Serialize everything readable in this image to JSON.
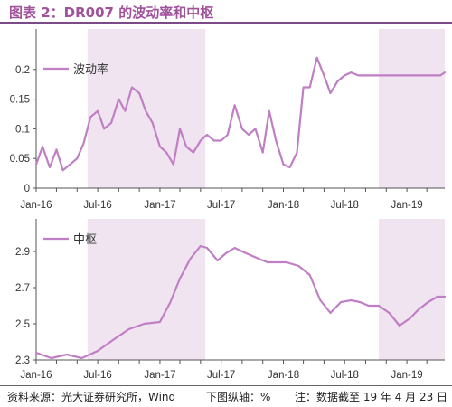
{
  "header": {
    "title": "图表 2：DR007 的波动率和中枢"
  },
  "footer": {
    "source": "资料来源：光大证券研究所，Wind",
    "axis_note": "下图纵轴：%",
    "note": "注：数据截至 19 年 4 月 23 日"
  },
  "colors": {
    "line": "#c07fc5",
    "shade": "#efe4f0",
    "title": "#a0529b"
  },
  "chart_data": [
    {
      "type": "line",
      "title": "",
      "legend": "top-left",
      "grid": false,
      "x_tick_labels": [
        "Jan-16",
        "Jul-16",
        "Jan-17",
        "Jul-17",
        "Jan-18",
        "Jul-18",
        "Jan-19"
      ],
      "xlim": [
        "2016-01-01",
        "2019-04-23"
      ],
      "ylim": [
        0,
        0.25
      ],
      "y_ticks": [
        0,
        0.05,
        0.1,
        0.15,
        0.2
      ],
      "y_tick_labels": [
        "0",
        "0.05",
        "0.1",
        "0.15",
        "0.2"
      ],
      "shaded_periods": [
        [
          "2016-06-01",
          "2017-05-15"
        ],
        [
          "2018-10-10",
          "2019-04-23"
        ]
      ],
      "series": [
        {
          "name": "波动率",
          "x": [
            "2016-01-01",
            "2016-01-20",
            "2016-02-10",
            "2016-03-01",
            "2016-03-20",
            "2016-04-10",
            "2016-05-01",
            "2016-05-20",
            "2016-06-10",
            "2016-07-01",
            "2016-07-20",
            "2016-08-10",
            "2016-09-01",
            "2016-09-20",
            "2016-10-10",
            "2016-11-01",
            "2016-11-20",
            "2016-12-10",
            "2017-01-01",
            "2017-01-20",
            "2017-02-10",
            "2017-03-01",
            "2017-03-20",
            "2017-04-10",
            "2017-05-01",
            "2017-05-20",
            "2017-06-10",
            "2017-07-01",
            "2017-07-20",
            "2017-08-10",
            "2017-09-01",
            "2017-09-20",
            "2017-10-10",
            "2017-11-01",
            "2017-11-20",
            "2017-12-10",
            "2018-01-01",
            "2018-01-20",
            "2018-02-10",
            "2018-03-01",
            "2018-03-20",
            "2018-04-10",
            "2018-05-01",
            "2018-05-20",
            "2018-06-10",
            "2018-07-01",
            "2018-07-20",
            "2018-08-10",
            "2018-09-01",
            "2018-09-20",
            "2018-10-10",
            "2018-11-01",
            "2018-11-20",
            "2018-12-10",
            "2019-01-01",
            "2019-01-20",
            "2019-02-10",
            "2019-03-01",
            "2019-03-20",
            "2019-04-10",
            "2019-04-23"
          ],
          "y": [
            0.04,
            0.07,
            0.035,
            0.065,
            0.03,
            0.04,
            0.05,
            0.075,
            0.12,
            0.13,
            0.1,
            0.11,
            0.15,
            0.13,
            0.17,
            0.16,
            0.13,
            0.11,
            0.07,
            0.06,
            0.04,
            0.1,
            0.07,
            0.06,
            0.08,
            0.09,
            0.08,
            0.08,
            0.09,
            0.14,
            0.1,
            0.09,
            0.1,
            0.06,
            0.13,
            0.08,
            0.04,
            0.035,
            0.06,
            0.17,
            0.17,
            0.22,
            0.19,
            0.16,
            0.18,
            0.19,
            0.195,
            0.19,
            0.19,
            0.19,
            0.19,
            0.19,
            0.19,
            0.19,
            0.19,
            0.19,
            0.19,
            0.19,
            0.19,
            0.19,
            0.195
          ]
        }
      ]
    },
    {
      "type": "line",
      "title": "",
      "legend": "top-left",
      "grid": false,
      "x_tick_labels": [
        "Jan-16",
        "Jul-16",
        "Jan-17",
        "Jul-17",
        "Jan-18",
        "Jul-18",
        "Jan-19"
      ],
      "xlim": [
        "2016-01-01",
        "2019-04-23"
      ],
      "ylim": [
        2.3,
        3.0
      ],
      "y_ticks": [
        2.3,
        2.5,
        2.7,
        2.9
      ],
      "y_tick_labels": [
        "2.3",
        "2.5",
        "2.7",
        "2.9"
      ],
      "shaded_periods": [
        [
          "2016-06-01",
          "2017-05-15"
        ],
        [
          "2018-10-10",
          "2019-04-23"
        ]
      ],
      "series": [
        {
          "name": "中枢",
          "x": [
            "2016-01-01",
            "2016-02-15",
            "2016-04-01",
            "2016-05-15",
            "2016-07-01",
            "2016-08-15",
            "2016-10-01",
            "2016-11-15",
            "2017-01-01",
            "2017-02-01",
            "2017-03-01",
            "2017-04-01",
            "2017-05-01",
            "2017-05-20",
            "2017-06-20",
            "2017-07-15",
            "2017-08-10",
            "2017-09-01",
            "2017-09-25",
            "2017-10-20",
            "2017-11-15",
            "2017-12-10",
            "2018-01-10",
            "2018-02-15",
            "2018-03-20",
            "2018-04-20",
            "2018-05-20",
            "2018-06-20",
            "2018-07-20",
            "2018-08-15",
            "2018-09-10",
            "2018-10-10",
            "2018-11-10",
            "2018-12-10",
            "2019-01-10",
            "2019-02-05",
            "2019-03-05",
            "2019-04-01",
            "2019-04-23"
          ],
          "y": [
            2.34,
            2.31,
            2.33,
            2.31,
            2.35,
            2.41,
            2.47,
            2.5,
            2.51,
            2.62,
            2.75,
            2.86,
            2.93,
            2.92,
            2.85,
            2.89,
            2.92,
            2.9,
            2.88,
            2.86,
            2.84,
            2.84,
            2.84,
            2.82,
            2.77,
            2.63,
            2.56,
            2.62,
            2.63,
            2.62,
            2.6,
            2.6,
            2.56,
            2.49,
            2.53,
            2.58,
            2.62,
            2.65,
            2.65
          ]
        }
      ]
    }
  ]
}
